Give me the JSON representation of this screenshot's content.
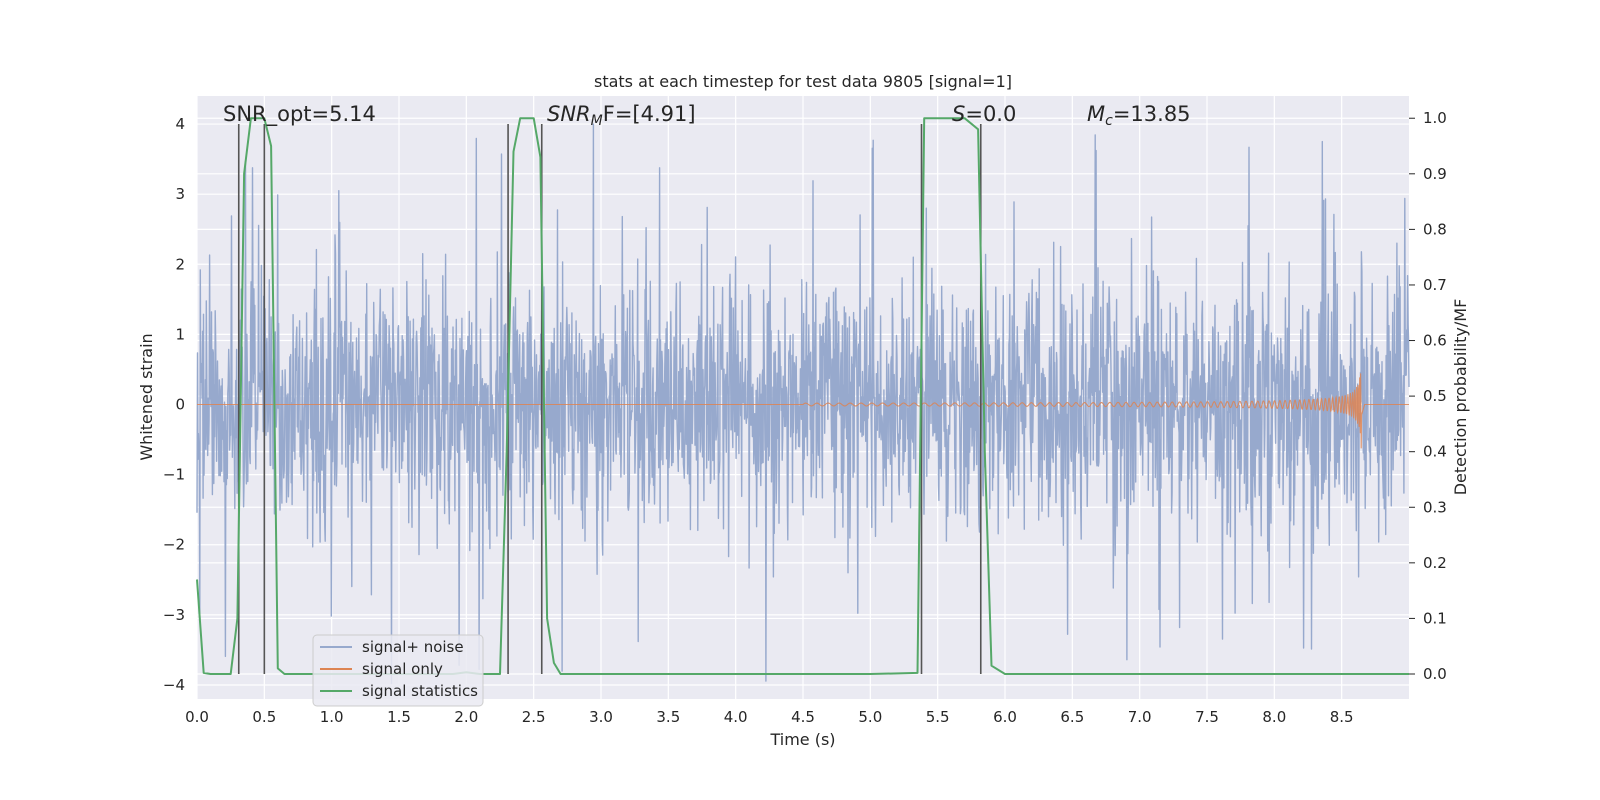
{
  "chart_data": {
    "type": "line",
    "title": "stats at each timestep for test data 9805 [signal=1]",
    "xlabel": "Time (s)",
    "ylabel": "Whitened strain",
    "ylabel_right": "Detection probability/MF",
    "xlim": [
      0,
      9.0
    ],
    "ylim": [
      -4.2,
      4.4
    ],
    "ylim_right": [
      -0.045,
      1.04
    ],
    "x_ticks": [
      "0.0",
      "0.5",
      "1.0",
      "1.5",
      "2.0",
      "2.5",
      "3.0",
      "3.5",
      "4.0",
      "4.5",
      "5.0",
      "5.5",
      "6.0",
      "6.5",
      "7.0",
      "7.5",
      "8.0",
      "8.5"
    ],
    "y_ticks": [
      "−4",
      "−3",
      "−2",
      "−1",
      "0",
      "1",
      "2",
      "3",
      "4"
    ],
    "y_ticks_right": [
      "0.0",
      "0.1",
      "0.2",
      "0.3",
      "0.4",
      "0.5",
      "0.6",
      "0.7",
      "0.8",
      "0.9",
      "1.0"
    ],
    "annotations": {
      "snr_opt": "SNR_opt=5.14",
      "snr_mf_base": "SNR",
      "snr_mf_sub": "M",
      "snr_mf_rest": "F=[4.91]",
      "s_base": "S",
      "s_rest": "=0.0",
      "mc_base": "M",
      "mc_sub": "c",
      "mc_rest": "=13.85"
    },
    "legend": {
      "placement": "lower-left",
      "entries": [
        "signal+ noise",
        "signal only",
        "signal statistics"
      ]
    },
    "colors": {
      "noise": "#97a9cd",
      "signal": "#dd8452",
      "stats": "#55a868",
      "markers": "#555555",
      "plot_bg": "#eaeaf2",
      "grid": "#ffffff"
    },
    "markers_x": [
      0.31,
      0.5,
      2.31,
      2.56,
      5.38,
      5.82
    ],
    "series": [
      {
        "name": "signal+ noise",
        "noise_envelope": {
          "typical_amplitude": 1.4,
          "peak_amplitude": 4.0,
          "x_range": [
            0,
            9.0
          ]
        }
      },
      {
        "name": "signal only",
        "chirp": {
          "start": 4.5,
          "merger": 8.65,
          "peak_amplitude": 0.85
        }
      },
      {
        "name": "signal statistics",
        "x": [
          0.0,
          0.05,
          0.1,
          0.15,
          0.2,
          0.25,
          0.3,
          0.35,
          0.4,
          0.45,
          0.5,
          0.55,
          0.6,
          0.65,
          1.0,
          1.5,
          1.8,
          1.9,
          2.0,
          2.1,
          2.2,
          2.25,
          2.3,
          2.35,
          2.4,
          2.45,
          2.5,
          2.55,
          2.6,
          2.65,
          2.7,
          3.0,
          4.0,
          5.0,
          5.35,
          5.4,
          5.45,
          5.5,
          5.6,
          5.7,
          5.8,
          5.85,
          5.9,
          6.0,
          7.0,
          8.0,
          9.0
        ],
        "values": [
          0.17,
          0.002,
          0.0,
          0.0,
          0.0,
          0.0,
          0.1,
          0.9,
          1.0,
          1.0,
          1.0,
          0.95,
          0.01,
          0.0,
          0.0,
          0.0,
          0.0,
          0.0,
          0.003,
          0.0,
          0.0,
          0.0,
          0.4,
          0.94,
          1.0,
          1.0,
          1.0,
          0.93,
          0.1,
          0.02,
          0.0,
          0.0,
          0.0,
          0.0,
          0.002,
          1.0,
          1.0,
          1.0,
          1.0,
          1.0,
          0.98,
          0.4,
          0.015,
          0.0,
          0.0,
          0.0,
          0.0
        ]
      }
    ]
  }
}
